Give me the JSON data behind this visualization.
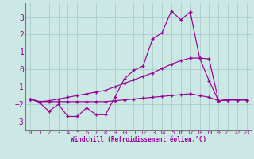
{
  "xlabel": "Windchill (Refroidissement éolien,°C)",
  "background_color": "#cce8e4",
  "grid_color": "#aacccc",
  "line_color": "#990099",
  "hours": [
    0,
    1,
    2,
    3,
    4,
    5,
    6,
    7,
    8,
    9,
    10,
    11,
    12,
    13,
    14,
    15,
    16,
    17,
    18,
    19,
    20,
    21,
    22,
    23
  ],
  "main_line": [
    -1.7,
    -1.9,
    -2.4,
    -2.0,
    -2.7,
    -2.7,
    -2.2,
    -2.6,
    -2.6,
    -1.6,
    -0.55,
    -0.05,
    0.2,
    1.75,
    2.1,
    3.35,
    2.85,
    3.3,
    0.65,
    -0.65,
    -1.8,
    -1.75,
    -1.75,
    -1.75
  ],
  "upper_line": [
    -1.7,
    -1.85,
    -1.8,
    -1.7,
    -1.6,
    -1.5,
    -1.4,
    -1.3,
    -1.2,
    -1.0,
    -0.8,
    -0.6,
    -0.4,
    -0.2,
    0.05,
    0.3,
    0.5,
    0.65,
    0.65,
    0.6,
    -1.8,
    -1.75,
    -1.75,
    -1.75
  ],
  "lower_line": [
    -1.7,
    -1.85,
    -1.85,
    -1.85,
    -1.85,
    -1.85,
    -1.85,
    -1.85,
    -1.85,
    -1.8,
    -1.75,
    -1.7,
    -1.65,
    -1.6,
    -1.55,
    -1.5,
    -1.45,
    -1.4,
    -1.5,
    -1.6,
    -1.8,
    -1.75,
    -1.75,
    -1.75
  ],
  "ylim": [
    -3.5,
    3.8
  ],
  "yticks": [
    -3,
    -2,
    -1,
    0,
    1,
    2,
    3
  ],
  "xlim": [
    -0.5,
    23.5
  ],
  "figsize": [
    3.2,
    2.0
  ],
  "dpi": 100
}
